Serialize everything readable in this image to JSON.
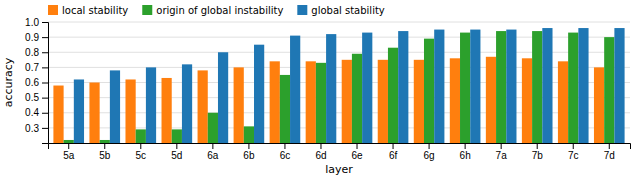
{
  "chart_data": {
    "type": "bar",
    "categories": [
      "5a",
      "5b",
      "5c",
      "5d",
      "6a",
      "6b",
      "6c",
      "6d",
      "6e",
      "6f",
      "6g",
      "6h",
      "7a",
      "7b",
      "7c",
      "7d"
    ],
    "series": [
      {
        "name": "local stability",
        "color": "#ff7f0e",
        "values": [
          0.58,
          0.6,
          0.62,
          0.63,
          0.68,
          0.7,
          0.74,
          0.74,
          0.75,
          0.75,
          0.75,
          0.76,
          0.77,
          0.76,
          0.74,
          0.7
        ]
      },
      {
        "name": "origin of global instability",
        "color": "#2ca02c",
        "values": [
          0.22,
          0.22,
          0.29,
          0.29,
          0.4,
          0.31,
          0.65,
          0.73,
          0.79,
          0.83,
          0.89,
          0.93,
          0.94,
          0.94,
          0.93,
          0.9
        ]
      },
      {
        "name": "global stability",
        "color": "#1f77b4",
        "values": [
          0.62,
          0.68,
          0.7,
          0.72,
          0.8,
          0.85,
          0.91,
          0.92,
          0.93,
          0.94,
          0.95,
          0.95,
          0.95,
          0.96,
          0.96,
          0.96
        ]
      }
    ],
    "xlabel": "layer",
    "ylabel": "accuracy",
    "ylim": [
      0.2,
      1.0
    ],
    "yticks": [
      0.3,
      0.4,
      0.5,
      0.6,
      0.7,
      0.8,
      0.9,
      {
        "value": 1.0,
        "label": "1.0"
      }
    ],
    "grid": true,
    "legend": "upper left"
  }
}
